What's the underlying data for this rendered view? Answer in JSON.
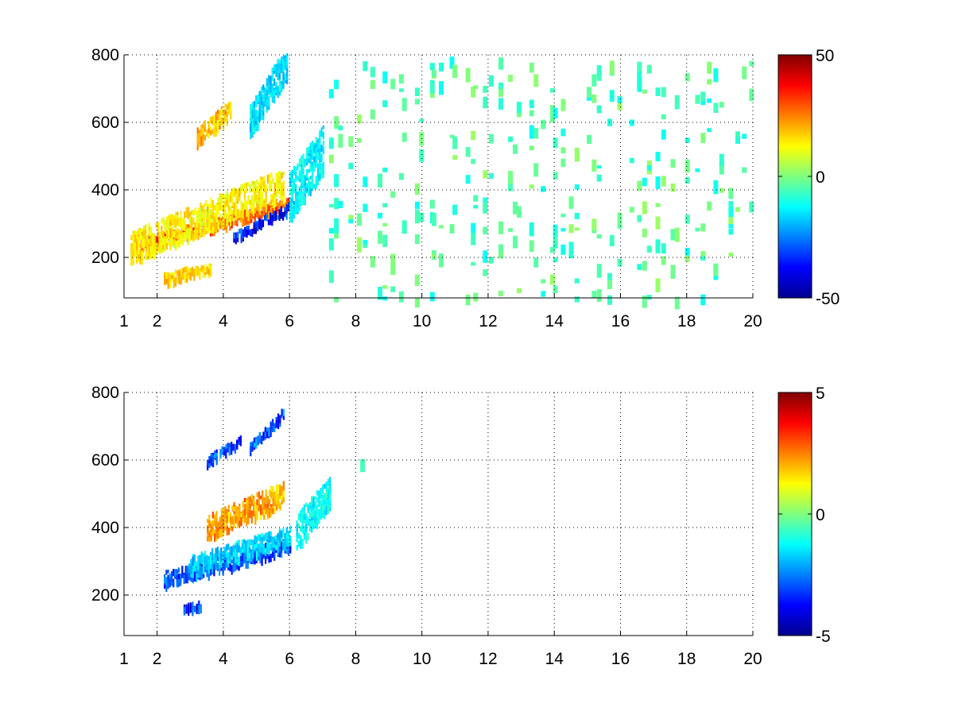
{
  "chart_data": [
    {
      "type": "heatmap",
      "title": "",
      "xlabel": "",
      "ylabel": "",
      "xlim": [
        1,
        20
      ],
      "ylim": [
        80,
        800
      ],
      "x_ticks": [
        1,
        2,
        4,
        6,
        8,
        10,
        12,
        14,
        16,
        18,
        20
      ],
      "y_ticks": [
        200,
        400,
        600,
        800
      ],
      "grid": true,
      "colormap": "jet",
      "colorbar": {
        "min": -50,
        "max": 50,
        "ticks": [
          -50,
          0,
          50
        ]
      },
      "structures": [
        {
          "name": "",
          "x_range": [
            1.5,
            6.0
          ],
          "y_start": 240,
          "y_end": 360,
          "value": 35,
          "thickness": 30
        },
        {
          "name": "",
          "x_range": [
            4.3,
            6.0
          ],
          "y_start": 260,
          "y_end": 350,
          "value": -45,
          "thickness": 22
        },
        {
          "name": "",
          "x_range": [
            1.2,
            5.8
          ],
          "y_start": 230,
          "y_end": 420,
          "value": 18,
          "thickness": 90
        },
        {
          "name": "",
          "x_range": [
            3.2,
            4.2
          ],
          "y_start": 560,
          "y_end": 640,
          "value": 25,
          "thickness": 50
        },
        {
          "name": "",
          "x_range": [
            4.8,
            5.9
          ],
          "y_start": 600,
          "y_end": 780,
          "value": -20,
          "thickness": 100
        },
        {
          "name": "",
          "x_range": [
            6.0,
            7.0
          ],
          "y_start": 380,
          "y_end": 520,
          "value": -18,
          "thickness": 140
        },
        {
          "name": "",
          "x_range": [
            2.2,
            3.6
          ],
          "y_start": 140,
          "y_end": 170,
          "value": 22,
          "thickness": 30
        }
      ],
      "scatter_region": {
        "x_range": [
          7.0,
          20.0
        ],
        "values": [
          -12,
          3
        ]
      }
    },
    {
      "type": "heatmap",
      "title": "",
      "xlabel": "",
      "ylabel": "",
      "xlim": [
        1,
        20
      ],
      "ylim": [
        80,
        800
      ],
      "x_ticks": [
        1,
        2,
        4,
        6,
        8,
        10,
        12,
        14,
        16,
        18,
        20
      ],
      "y_ticks": [
        200,
        400,
        600,
        800
      ],
      "grid": true,
      "colormap": "jet",
      "colorbar": {
        "min": -5,
        "max": 5,
        "ticks": [
          -5,
          0,
          5
        ]
      },
      "structures": [
        {
          "name": "",
          "x_range": [
            2.2,
            6.0
          ],
          "y_start": 250,
          "y_end": 350,
          "value": -3.8,
          "thickness": 40
        },
        {
          "name": "",
          "x_range": [
            3.0,
            6.0
          ],
          "y_start": 290,
          "y_end": 380,
          "value": -2.2,
          "thickness": 50
        },
        {
          "name": "",
          "x_range": [
            3.5,
            5.8
          ],
          "y_start": 400,
          "y_end": 500,
          "value": 2.8,
          "thickness": 70
        },
        {
          "name": "",
          "x_range": [
            3.5,
            4.5
          ],
          "y_start": 600,
          "y_end": 660,
          "value": -4.2,
          "thickness": 20
        },
        {
          "name": "",
          "x_range": [
            4.8,
            5.8
          ],
          "y_start": 640,
          "y_end": 740,
          "value": -3.8,
          "thickness": 25
        },
        {
          "name": "",
          "x_range": [
            6.2,
            7.2
          ],
          "y_start": 390,
          "y_end": 500,
          "value": -1.6,
          "thickness": 100
        },
        {
          "name": "",
          "x_range": [
            2.8,
            3.3
          ],
          "y_start": 160,
          "y_end": 170,
          "value": -4.3,
          "thickness": 20
        }
      ],
      "scatter_region": {
        "x_range": [
          8.0,
          8.8
        ],
        "values": [
          -1.5,
          0.5
        ]
      }
    }
  ]
}
